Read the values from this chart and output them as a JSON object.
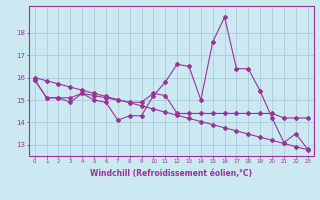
{
  "title": "",
  "xlabel": "Windchill (Refroidissement éolien,°C)",
  "ylabel": "",
  "bg_color": "#cce8f0",
  "line_color": "#993399",
  "grid_color": "#aaccdd",
  "x_data": [
    0,
    1,
    2,
    3,
    4,
    5,
    6,
    7,
    8,
    9,
    10,
    11,
    12,
    13,
    14,
    15,
    16,
    17,
    18,
    19,
    20,
    21,
    22,
    23
  ],
  "series1": [
    15.9,
    15.1,
    15.1,
    14.9,
    15.3,
    15.0,
    14.9,
    14.1,
    14.3,
    14.3,
    15.2,
    15.8,
    16.6,
    16.5,
    15.0,
    17.6,
    18.7,
    16.4,
    16.4,
    15.4,
    14.2,
    13.1,
    13.5,
    12.8
  ],
  "series2": [
    15.9,
    15.1,
    15.1,
    15.1,
    15.3,
    15.2,
    15.1,
    15.0,
    14.9,
    14.9,
    15.3,
    15.2,
    14.4,
    14.4,
    14.4,
    14.4,
    14.4,
    14.4,
    14.4,
    14.4,
    14.4,
    14.2,
    14.2,
    14.2
  ],
  "series3": [
    16.0,
    15.86,
    15.72,
    15.58,
    15.44,
    15.3,
    15.16,
    15.02,
    14.88,
    14.74,
    14.6,
    14.46,
    14.32,
    14.18,
    14.04,
    13.9,
    13.76,
    13.62,
    13.48,
    13.34,
    13.2,
    13.06,
    12.92,
    12.78
  ],
  "yticks": [
    13,
    14,
    15,
    16,
    17,
    18
  ],
  "ylim": [
    12.5,
    19.2
  ],
  "xlim": [
    -0.5,
    23.5
  ]
}
